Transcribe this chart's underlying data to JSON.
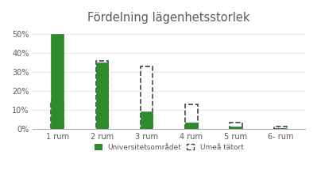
{
  "categories": [
    "1 rum",
    "2 rum",
    "3 rum",
    "4 rum",
    "5 rum",
    "6- rum"
  ],
  "universitetsomradet": [
    50,
    35,
    9,
    3,
    1,
    0.2
  ],
  "umea_tatort": [
    15,
    36,
    33,
    13,
    3,
    1
  ],
  "bar_color_solid": "#2d8a2d",
  "bar_color_dashed_fill": "#ffffff",
  "bar_edge_solid": "#2d8a2d",
  "bar_edge_dashed": "#444444",
  "title": "Fördelning lägenhetsstorlek",
  "title_fontsize": 10.5,
  "title_color": "#5a5a5a",
  "ylabel_ticks": [
    "0%",
    "10%",
    "20%",
    "30%",
    "40%",
    "50%"
  ],
  "ytick_vals": [
    0,
    10,
    20,
    30,
    40,
    50
  ],
  "ylim": [
    0,
    54
  ],
  "legend_solid": "Universitetsområdet",
  "legend_dashed": "Umeå tätort",
  "bar_width": 0.28,
  "background_color": "#ffffff",
  "tick_color": "#5a5a5a",
  "spine_color": "#aaaaaa"
}
